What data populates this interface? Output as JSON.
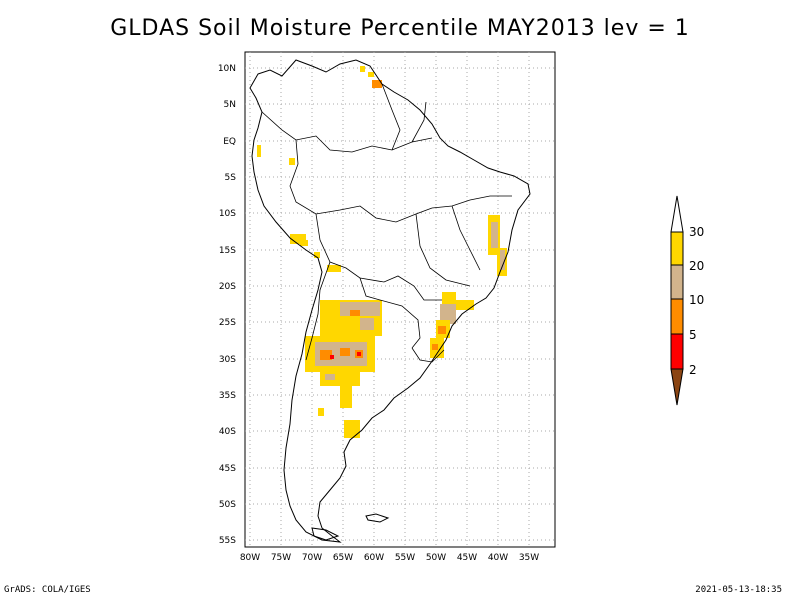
{
  "title": "GLDAS Soil Moisture Percentile MAY2013 lev = 1",
  "lat_labels": [
    "10N",
    "5N",
    "EQ",
    "5S",
    "10S",
    "15S",
    "20S",
    "25S",
    "30S",
    "35S",
    "40S",
    "45S",
    "50S",
    "55S"
  ],
  "lon_labels": [
    "80W",
    "75W",
    "70W",
    "65W",
    "60W",
    "55W",
    "50W",
    "45W",
    "40W",
    "35W"
  ],
  "legend": {
    "levels": [
      "2",
      "5",
      "10",
      "20",
      "30"
    ],
    "colors": {
      "below_2": "#8b4513",
      "2_5": "#ff0000",
      "5_10": "#ff8c00",
      "10_20": "#d2b48c",
      "20_30": "#ffd700",
      "above_30": "#ffffff"
    }
  },
  "colors": {
    "coast": "#000000",
    "grid": "#aaaaaa"
  },
  "footer": {
    "left": "GrADS: COLA/IGES",
    "right": "2021-05-13-18:35"
  }
}
